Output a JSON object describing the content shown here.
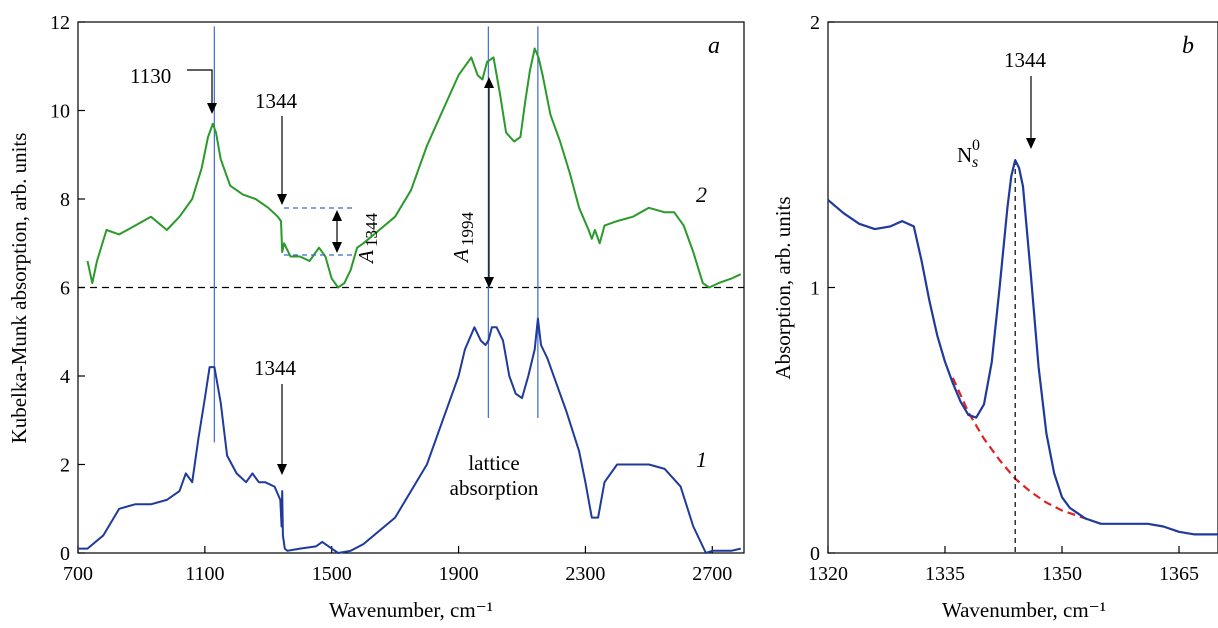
{
  "chart_data": [
    {
      "type": "line",
      "panel_label": "a",
      "xlabel": "Wavenumber, cm⁻¹",
      "ylabel": "Kubelka-Munk absorption, arb. units",
      "xlim": [
        700,
        2800
      ],
      "ylim": [
        0,
        12
      ],
      "xticks": [
        700,
        1100,
        1500,
        1900,
        2300,
        2700
      ],
      "yticks": [
        0,
        2,
        4,
        6,
        8,
        10,
        12
      ],
      "grid": false,
      "legend": "none",
      "series": [
        {
          "name": "1",
          "color": "#1f3a9b",
          "x": [
            700,
            730,
            780,
            830,
            880,
            930,
            980,
            1020,
            1040,
            1060,
            1080,
            1100,
            1115,
            1130,
            1150,
            1170,
            1200,
            1230,
            1250,
            1270,
            1290,
            1320,
            1338,
            1342,
            1344,
            1346,
            1352,
            1360,
            1400,
            1450,
            1470,
            1500,
            1520,
            1560,
            1600,
            1700,
            1800,
            1850,
            1900,
            1920,
            1950,
            1970,
            1985,
            1994,
            2005,
            2020,
            2040,
            2060,
            2080,
            2100,
            2120,
            2140,
            2150,
            2160,
            2180,
            2200,
            2240,
            2280,
            2300,
            2320,
            2340,
            2360,
            2400,
            2450,
            2500,
            2550,
            2600,
            2640,
            2680,
            2700,
            2720,
            2760,
            2790
          ],
          "y": [
            0.1,
            0.1,
            0.4,
            1.0,
            1.1,
            1.1,
            1.2,
            1.4,
            1.8,
            1.6,
            2.6,
            3.5,
            4.2,
            4.2,
            3.4,
            2.2,
            1.8,
            1.6,
            1.8,
            1.6,
            1.6,
            1.5,
            1.2,
            0.6,
            1.4,
            0.4,
            0.1,
            0.05,
            0.1,
            0.15,
            0.25,
            0.1,
            0.0,
            0.05,
            0.2,
            0.8,
            2.0,
            3.0,
            4.0,
            4.6,
            5.1,
            4.8,
            4.7,
            4.8,
            5.1,
            5.1,
            4.8,
            4.0,
            3.6,
            3.5,
            4.0,
            4.6,
            5.3,
            4.7,
            4.4,
            4.0,
            3.2,
            2.3,
            1.6,
            0.8,
            0.8,
            1.6,
            2.0,
            2.0,
            2.0,
            1.9,
            1.5,
            0.6,
            0.0,
            0.05,
            0.05,
            0.05,
            0.1
          ]
        },
        {
          "name": "2",
          "color": "#2a9a2a",
          "x": [
            730,
            745,
            760,
            790,
            830,
            880,
            930,
            980,
            1020,
            1060,
            1090,
            1110,
            1125,
            1135,
            1150,
            1180,
            1220,
            1260,
            1300,
            1330,
            1340,
            1344,
            1350,
            1370,
            1400,
            1430,
            1460,
            1480,
            1500,
            1520,
            1540,
            1560,
            1580,
            1600,
            1650,
            1700,
            1750,
            1800,
            1850,
            1900,
            1940,
            1960,
            1975,
            1990,
            2010,
            2030,
            2050,
            2075,
            2095,
            2110,
            2125,
            2140,
            2152,
            2165,
            2190,
            2220,
            2250,
            2280,
            2310,
            2320,
            2330,
            2345,
            2360,
            2400,
            2450,
            2500,
            2550,
            2580,
            2610,
            2640,
            2670,
            2690,
            2720,
            2760,
            2790
          ],
          "y": [
            6.6,
            6.1,
            6.6,
            7.3,
            7.2,
            7.4,
            7.6,
            7.3,
            7.6,
            8.0,
            8.7,
            9.4,
            9.7,
            9.5,
            8.9,
            8.3,
            8.1,
            8.0,
            7.8,
            7.6,
            7.5,
            6.8,
            7.0,
            6.7,
            6.7,
            6.6,
            6.9,
            6.7,
            6.2,
            6.0,
            6.1,
            6.4,
            6.9,
            7.0,
            7.3,
            7.6,
            8.2,
            9.2,
            10.0,
            10.8,
            11.2,
            10.8,
            10.7,
            11.1,
            11.2,
            10.4,
            9.5,
            9.3,
            9.4,
            10.2,
            10.9,
            11.4,
            11.2,
            10.8,
            9.9,
            9.3,
            8.6,
            7.8,
            7.3,
            7.1,
            7.3,
            7.0,
            7.4,
            7.5,
            7.6,
            7.8,
            7.7,
            7.7,
            7.4,
            6.8,
            6.1,
            6.0,
            6.1,
            6.2,
            6.3
          ]
        }
      ],
      "baseline": {
        "y": 6,
        "style": "dashed"
      },
      "vertical_markers": [
        1130,
        1994,
        2150
      ],
      "annotations": {
        "peak_1130": "1130",
        "peak_1344_top": "1344",
        "peak_1344_bottom": "1344",
        "a1344_base": "A",
        "a1344_sub": "1344",
        "a1994_base": "A",
        "a1994_sub": "1994",
        "lattice_line1": "lattice",
        "lattice_line2": "absorption",
        "curve1_label": "1",
        "curve2_label": "2"
      }
    },
    {
      "type": "line",
      "panel_label": "b",
      "xlabel": "Wavenumber, cm⁻¹",
      "ylabel": "Absorption, arb. units",
      "xlim": [
        1320,
        1370
      ],
      "ylim": [
        0,
        2
      ],
      "xticks": [
        1320,
        1335,
        1350,
        1365
      ],
      "yticks": [
        0,
        1,
        2
      ],
      "grid": false,
      "legend": "none",
      "series": [
        {
          "name": "",
          "color": "#1f3a9b",
          "x": [
            1320,
            1322,
            1324,
            1326,
            1328,
            1329.5,
            1331,
            1332,
            1333,
            1334,
            1335,
            1336,
            1337,
            1338,
            1339,
            1340,
            1341,
            1342,
            1343,
            1343.5,
            1344,
            1344.5,
            1345,
            1346,
            1347,
            1348,
            1349,
            1350,
            1351,
            1352,
            1353,
            1355,
            1358,
            1361,
            1363,
            1365,
            1367,
            1370
          ],
          "y": [
            1.33,
            1.28,
            1.24,
            1.22,
            1.23,
            1.25,
            1.23,
            1.1,
            0.95,
            0.82,
            0.72,
            0.64,
            0.57,
            0.52,
            0.51,
            0.56,
            0.72,
            1.0,
            1.3,
            1.42,
            1.48,
            1.45,
            1.38,
            1.05,
            0.7,
            0.45,
            0.3,
            0.21,
            0.17,
            0.15,
            0.13,
            0.11,
            0.11,
            0.11,
            0.1,
            0.08,
            0.07,
            0.07
          ]
        }
      ],
      "baseline_fit": {
        "color": "#dd2222",
        "x": [
          1336,
          1338,
          1340,
          1342,
          1344,
          1346,
          1348,
          1350,
          1352,
          1354
        ],
        "y": [
          0.66,
          0.53,
          0.43,
          0.35,
          0.28,
          0.23,
          0.19,
          0.16,
          0.14,
          0.12
        ]
      },
      "vertical_marker": {
        "x": 1344,
        "y_top": 1.48
      },
      "annotations": {
        "peak_1344": "1344",
        "ns0_base": "N",
        "ns0_sub": "s",
        "ns0_sup": "0"
      }
    }
  ]
}
